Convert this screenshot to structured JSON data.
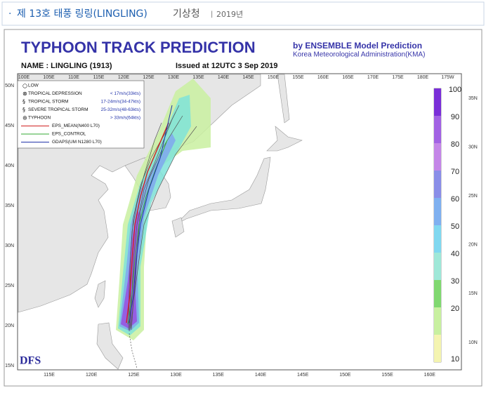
{
  "header": {
    "title": "제 13호 태풍 링링(LINGLING)",
    "source": "기상청",
    "date": "2019년"
  },
  "map": {
    "title": "TYPHOON TRACK PREDICTION",
    "subtitle_line1": "by ENSEMBLE Model Prediction",
    "subtitle_line2": "Korea Meteorological Administration(KMA)",
    "name_label": "NAME : LINGLING (1913)",
    "issued": "Issued at 12UTC  3 Sep 2019",
    "logo": "DFS",
    "top_lon_labels": [
      "100E",
      "105E",
      "110E",
      "115E",
      "120E",
      "125E",
      "130E",
      "135E",
      "140E",
      "145E",
      "150E",
      "155E",
      "160E",
      "165E",
      "170E",
      "175E",
      "180E",
      "175W"
    ],
    "bottom_lon_labels": [
      "115E",
      "120E",
      "125E",
      "130E",
      "135E",
      "140E",
      "145E",
      "150E",
      "155E",
      "160E"
    ],
    "left_lat_labels": [
      "50N",
      "45N",
      "40N",
      "35N",
      "30N",
      "25N",
      "20N",
      "15N"
    ],
    "right_lat_labels": [
      "35N",
      "30N",
      "25N",
      "20N",
      "15N",
      "10N"
    ],
    "legend": [
      {
        "label": "LOW"
      },
      {
        "label": "TROPICAL DEPRESSION",
        "range": "< 17m/s(33kts)"
      },
      {
        "label": "TROPICAL STORM",
        "range": "17-24m/s(34-47kts)"
      },
      {
        "label": "SEVERE TROPICAL STORM",
        "range": "25-32m/s(48-63kts)"
      },
      {
        "label": "TYPHOON",
        "range": "> 33m/s(64kts)"
      },
      {
        "label": "EPS_MEAN(N400 L70)"
      },
      {
        "label": "EPS_CONTROL"
      },
      {
        "label": "GDAPS(UM N1280 L70)"
      }
    ],
    "colorbar_ticks": [
      100,
      90,
      80,
      70,
      60,
      50,
      40,
      30,
      20,
      10
    ]
  }
}
